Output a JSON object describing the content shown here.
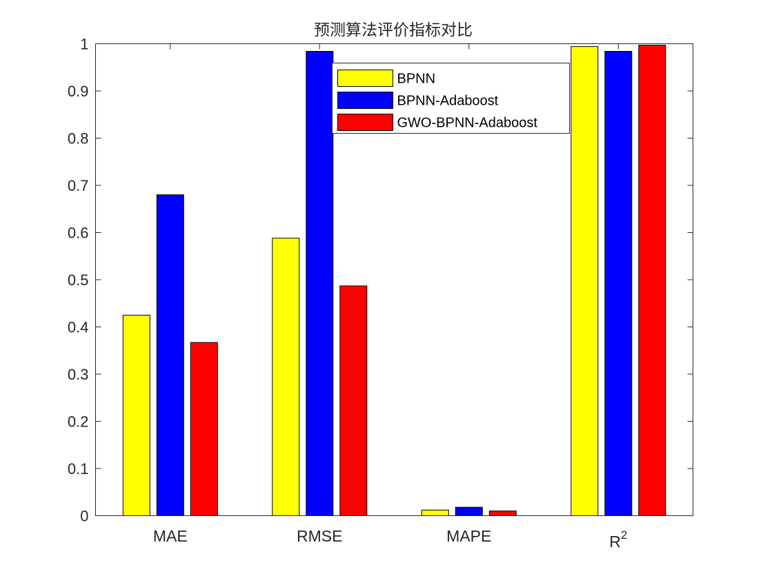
{
  "chart_data": {
    "type": "bar",
    "title": "预测算法评价指标对比",
    "categories": [
      "MAE",
      "RMSE",
      "MAPE",
      "R"
    ],
    "category_superscripts": [
      "",
      "",
      "",
      "2"
    ],
    "series": [
      {
        "name": "BPNN",
        "color": "#ffff00",
        "values": [
          0.425,
          0.588,
          0.012,
          0.994
        ]
      },
      {
        "name": "BPNN-Adaboost",
        "color": "#0000ff",
        "values": [
          0.68,
          0.984,
          0.018,
          0.984
        ]
      },
      {
        "name": "GWO-BPNN-Adaboost",
        "color": "#ff0000",
        "values": [
          0.367,
          0.487,
          0.01,
          0.997
        ]
      }
    ],
    "ylim": [
      0,
      1
    ],
    "yticks": [
      "0",
      "0.1",
      "0.2",
      "0.3",
      "0.4",
      "0.5",
      "0.6",
      "0.7",
      "0.8",
      "0.9",
      "1"
    ],
    "grid": false,
    "legend_position": "top-center"
  }
}
